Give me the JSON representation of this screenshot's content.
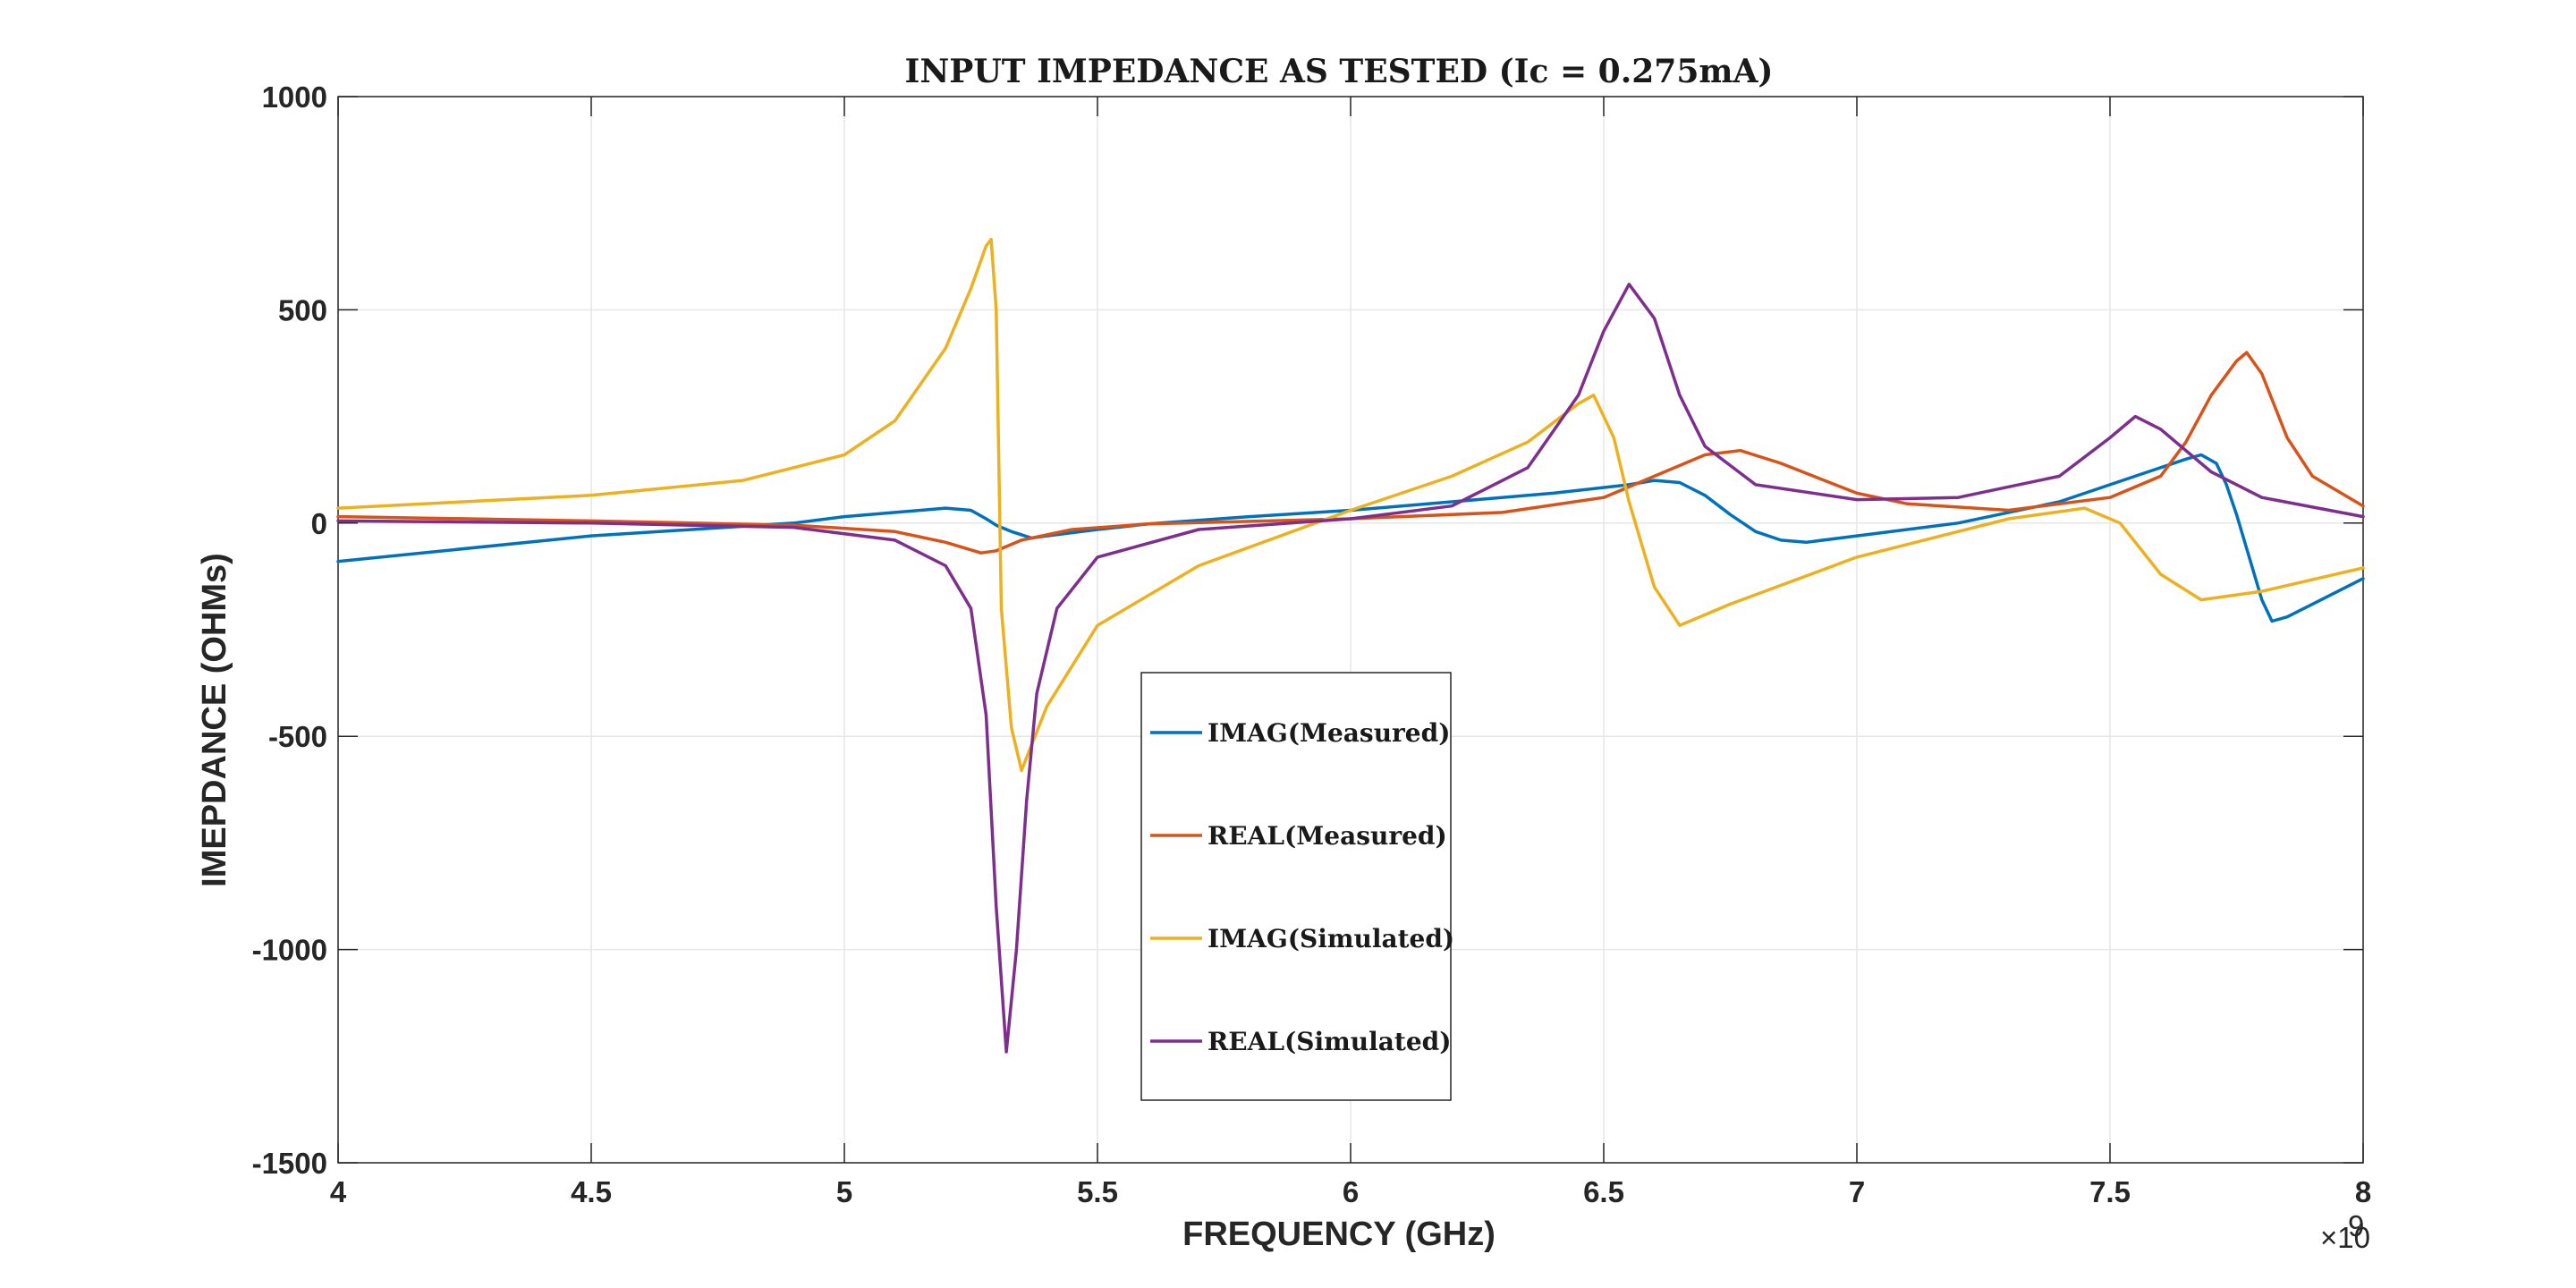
{
  "chart_data": {
    "type": "line",
    "title": "INPUT IMPEDANCE AS TESTED (Ic = 0.275mA)",
    "xlabel": "FREQUENCY (GHz)",
    "ylabel": "IMEPDANCE (OHMs)",
    "x_multiplier": "×10",
    "x_multiplier_exp": "9",
    "xlim": [
      4000000000.0,
      8000000000.0
    ],
    "ylim": [
      -1500,
      1000
    ],
    "xticks": [
      4000000000.0,
      4500000000.0,
      5000000000.0,
      5500000000.0,
      6000000000.0,
      6500000000.0,
      7000000000.0,
      7500000000.0,
      8000000000.0
    ],
    "xtick_labels": [
      "4",
      "4.5",
      "5",
      "5.5",
      "6",
      "6.5",
      "7",
      "7.5",
      "8"
    ],
    "yticks": [
      1000,
      500,
      0,
      -500,
      -1000,
      -1500
    ],
    "ytick_labels": [
      "1000",
      "500",
      "0",
      "-500",
      "-1000",
      "-1500"
    ],
    "grid": true,
    "legend_position": "center-bottom",
    "series": [
      {
        "name": "IMAG(Measured)",
        "color": "#0072BD",
        "x": [
          4000000000.0,
          4500000000.0,
          4900000000.0,
          5000000000.0,
          5100000000.0,
          5200000000.0,
          5250000000.0,
          5280000000.0,
          5300000000.0,
          5330000000.0,
          5370000000.0,
          5400000000.0,
          5500000000.0,
          5600000000.0,
          5800000000.0,
          6000000000.0,
          6200000000.0,
          6400000000.0,
          6550000000.0,
          6600000000.0,
          6650000000.0,
          6700000000.0,
          6750000000.0,
          6800000000.0,
          6850000000.0,
          6900000000.0,
          7000000000.0,
          7200000000.0,
          7400000000.0,
          7500000000.0,
          7600000000.0,
          7650000000.0,
          7680000000.0,
          7710000000.0,
          7730000000.0,
          7750000000.0,
          7780000000.0,
          7800000000.0,
          7820000000.0,
          7850000000.0,
          7900000000.0,
          8000000000.0
        ],
        "values": [
          -90,
          -30,
          0,
          15,
          25,
          35,
          30,
          10,
          -5,
          -20,
          -35,
          -30,
          -15,
          -2,
          15,
          30,
          50,
          70,
          90,
          100,
          95,
          65,
          20,
          -20,
          -40,
          -45,
          -30,
          0,
          50,
          90,
          130,
          150,
          160,
          140,
          90,
          20,
          -100,
          -180,
          -230,
          -220,
          -190,
          -130
        ]
      },
      {
        "name": "REAL(Measured)",
        "color": "#D95319",
        "x": [
          4000000000.0,
          4500000000.0,
          4900000000.0,
          5100000000.0,
          5200000000.0,
          5270000000.0,
          5300000000.0,
          5350000000.0,
          5450000000.0,
          5600000000.0,
          6000000000.0,
          6300000000.0,
          6500000000.0,
          6600000000.0,
          6700000000.0,
          6770000000.0,
          6850000000.0,
          7000000000.0,
          7100000000.0,
          7300000000.0,
          7500000000.0,
          7600000000.0,
          7650000000.0,
          7700000000.0,
          7750000000.0,
          7770000000.0,
          7800000000.0,
          7850000000.0,
          7900000000.0,
          8000000000.0
        ],
        "values": [
          15,
          5,
          -5,
          -20,
          -45,
          -70,
          -65,
          -40,
          -15,
          -2,
          10,
          25,
          60,
          110,
          160,
          170,
          140,
          70,
          45,
          30,
          60,
          110,
          190,
          300,
          380,
          400,
          350,
          200,
          110,
          40
        ]
      },
      {
        "name": "IMAG(Simulated)",
        "color": "#EDB120",
        "x": [
          4000000000.0,
          4500000000.0,
          4800000000.0,
          5000000000.0,
          5100000000.0,
          5200000000.0,
          5250000000.0,
          5280000000.0,
          5290000000.0,
          5300000000.0,
          5310000000.0,
          5330000000.0,
          5350000000.0,
          5370000000.0,
          5400000000.0,
          5500000000.0,
          5700000000.0,
          6000000000.0,
          6200000000.0,
          6350000000.0,
          6450000000.0,
          6480000000.0,
          6520000000.0,
          6550000000.0,
          6600000000.0,
          6650000000.0,
          6750000000.0,
          7000000000.0,
          7300000000.0,
          7450000000.0,
          7520000000.0,
          7600000000.0,
          7680000000.0,
          7800000000.0,
          8000000000.0
        ],
        "values": [
          35,
          65,
          100,
          160,
          240,
          410,
          550,
          650,
          665,
          500,
          -200,
          -480,
          -580,
          -520,
          -430,
          -240,
          -100,
          30,
          110,
          190,
          280,
          300,
          200,
          50,
          -150,
          -240,
          -190,
          -80,
          10,
          35,
          0,
          -120,
          -180,
          -160,
          -105
        ]
      },
      {
        "name": "REAL(Simulated)",
        "color": "#7E2F8E",
        "x": [
          4000000000.0,
          4500000000.0,
          4900000000.0,
          5100000000.0,
          5200000000.0,
          5250000000.0,
          5280000000.0,
          5300000000.0,
          5320000000.0,
          5340000000.0,
          5360000000.0,
          5380000000.0,
          5420000000.0,
          5500000000.0,
          5700000000.0,
          6000000000.0,
          6200000000.0,
          6350000000.0,
          6450000000.0,
          6500000000.0,
          6550000000.0,
          6600000000.0,
          6650000000.0,
          6700000000.0,
          6800000000.0,
          7000000000.0,
          7200000000.0,
          7400000000.0,
          7500000000.0,
          7550000000.0,
          7600000000.0,
          7700000000.0,
          7800000000.0,
          8000000000.0
        ],
        "values": [
          5,
          0,
          -10,
          -40,
          -100,
          -200,
          -450,
          -900,
          -1240,
          -1000,
          -650,
          -400,
          -200,
          -80,
          -15,
          10,
          40,
          130,
          300,
          450,
          560,
          480,
          300,
          180,
          90,
          55,
          60,
          110,
          200,
          250,
          220,
          120,
          60,
          15
        ]
      }
    ]
  }
}
